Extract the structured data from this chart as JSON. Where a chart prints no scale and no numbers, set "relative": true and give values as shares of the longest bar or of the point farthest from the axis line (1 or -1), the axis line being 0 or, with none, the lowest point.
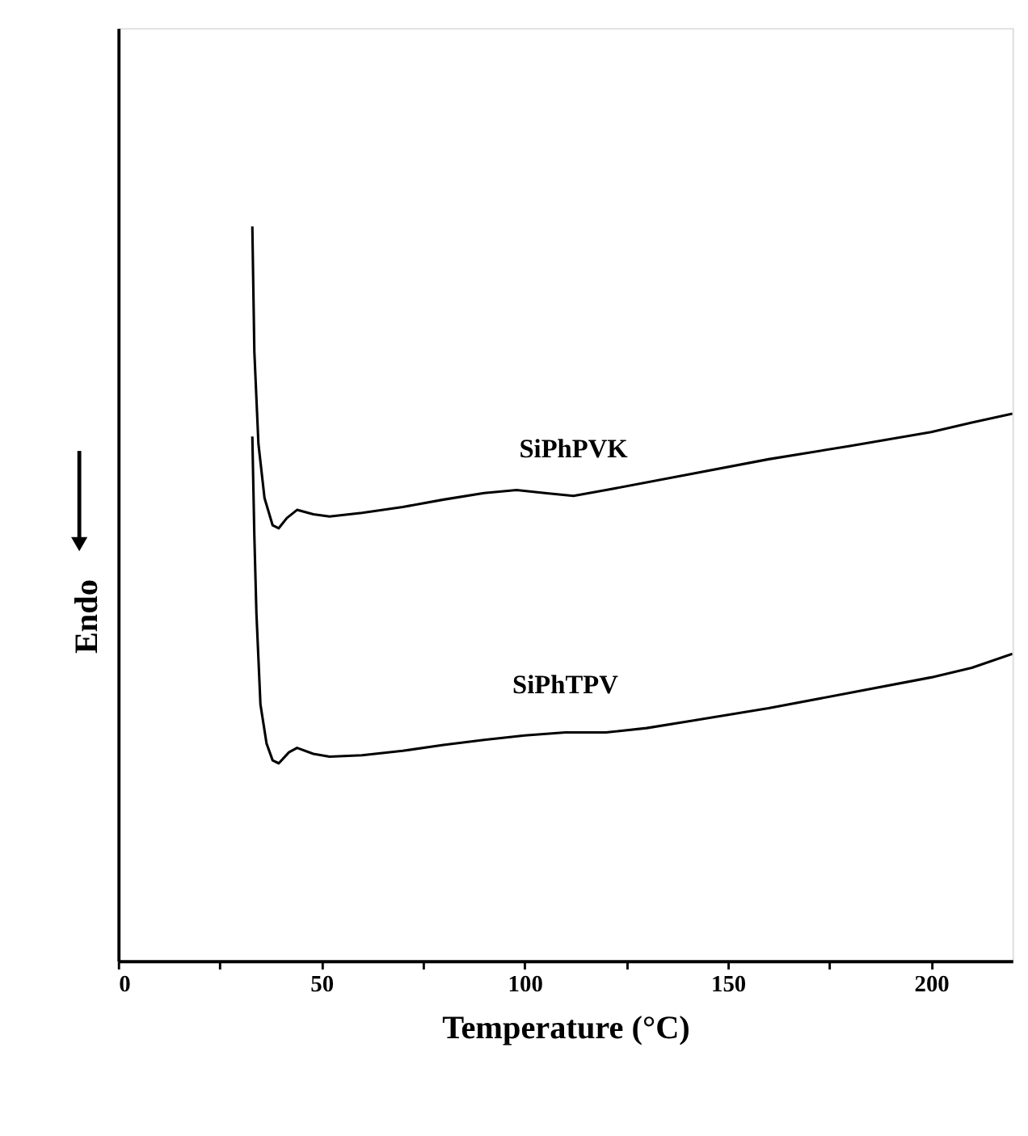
{
  "chart_data": {
    "type": "line",
    "relative": true,
    "line_style": "solid",
    "xlabel": "Temperature (°C)",
    "ylabel": "Endo",
    "xlim": [
      0,
      220
    ],
    "xticks": [
      0,
      {
        "value": 25,
        "label": null
      },
      50,
      {
        "value": 75,
        "label": null
      },
      100,
      {
        "value": 125,
        "label": null
      },
      150,
      {
        "value": 175,
        "label": null
      },
      200
    ],
    "series": [
      {
        "name": "SiPhPVK",
        "color": "#000000",
        "x": [
          33,
          33.5,
          34.5,
          36,
          38,
          39.5,
          41.5,
          44,
          48,
          52,
          60,
          70,
          80,
          90,
          98,
          105,
          112,
          120,
          140,
          160,
          180,
          200,
          210,
          220
        ],
        "values": [
          1.0,
          0.829,
          0.704,
          0.63,
          0.593,
          0.589,
          0.603,
          0.614,
          0.608,
          0.605,
          0.61,
          0.618,
          0.628,
          0.637,
          0.641,
          0.637,
          0.633,
          0.641,
          0.662,
          0.683,
          0.701,
          0.72,
          0.733,
          0.745
        ]
      },
      {
        "name": "SiPhTPV",
        "color": "#000000",
        "x": [
          33,
          33.5,
          34,
          35,
          36.5,
          38,
          39.5,
          42,
          44,
          48,
          52,
          60,
          70,
          80,
          90,
          100,
          110,
          120,
          130,
          140,
          160,
          180,
          200,
          210,
          220
        ],
        "values": [
          0.714,
          0.578,
          0.474,
          0.349,
          0.296,
          0.273,
          0.269,
          0.284,
          0.29,
          0.282,
          0.278,
          0.28,
          0.286,
          0.294,
          0.301,
          0.307,
          0.311,
          0.311,
          0.317,
          0.326,
          0.344,
          0.365,
          0.386,
          0.399,
          0.418
        ]
      }
    ]
  }
}
